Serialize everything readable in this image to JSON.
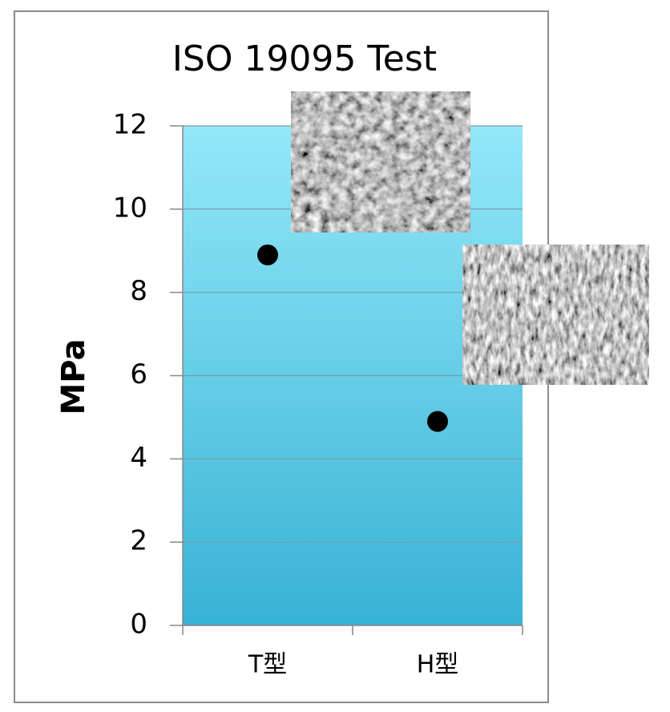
{
  "chart_data": {
    "type": "scatter",
    "title": "ISO 19095 Test",
    "y_label": "MPa",
    "categories": [
      "T型",
      "H型"
    ],
    "series": [
      {
        "color": "#000000",
        "values": [
          8.9,
          4.9
        ]
      }
    ],
    "ylim": [
      0,
      12
    ],
    "yticks": [
      0,
      2,
      4,
      6,
      8,
      10,
      12
    ],
    "grid": true
  }
}
